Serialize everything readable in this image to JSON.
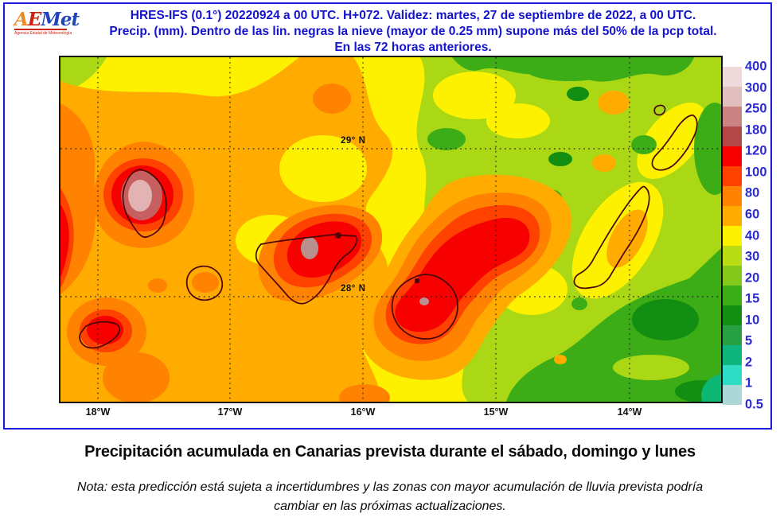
{
  "logo": {
    "letters": [
      "A",
      "E",
      "M",
      "e",
      "t"
    ],
    "subtitle": "Agencia Estatal de Meteorología"
  },
  "header": {
    "line1": "HRES-IFS (0.1°) 20220924 a 00 UTC.  H+072. Validez: martes, 27 de septiembre de 2022,  a  00 UTC.",
    "line2": "Precip. (mm). Dentro de las lin. negras la nieve (mayor de 0.25 mm) supone más del 50% de la pcp total.",
    "line3": "En las 72 horas anteriores.",
    "text_color": "#1414cf"
  },
  "map": {
    "lat_labels": [
      "29° N",
      "28° N"
    ],
    "lon_labels": [
      "18°W",
      "17°W",
      "16°W",
      "15°W",
      "14°W"
    ],
    "palette": {
      "yellow": "#fdf100",
      "chartreuse": "#aad814",
      "green": "#3dad17",
      "dark_green": "#128e12",
      "teal": "#0cb873",
      "amber": "#ffab00",
      "orange": "#ff8300",
      "red_orange": "#ff4200",
      "red": "#f60000",
      "rose": "#c66060",
      "pale_pink": "#e3b3b3",
      "coastline": "#4a0505"
    }
  },
  "legend": {
    "values": [
      "400",
      "300",
      "250",
      "180",
      "120",
      "100",
      "80",
      "60",
      "40",
      "30",
      "20",
      "15",
      "10",
      "5",
      "2",
      "1",
      "0.5"
    ],
    "band_colors": [
      "#eedada",
      "#e2bfbf",
      "#c98383",
      "#b24848",
      "#f60000",
      "#ff4200",
      "#ff8300",
      "#ffab00",
      "#fdf100",
      "#b9dc15",
      "#84c81c",
      "#3aad17",
      "#128e12",
      "#27a044",
      "#0eb57d",
      "#2edbc3",
      "#abd7d7"
    ],
    "label_color": "#2a2ace"
  },
  "caption": "Precipitación acumulada en Canarias prevista durante el sábado, domingo y lunes",
  "note_lines": [
    "Nota: esta predicción está sujeta a incertidumbres y las zonas con mayor acumulación de lluvia prevista podría",
    "cambiar en las próximas actualizaciones."
  ]
}
